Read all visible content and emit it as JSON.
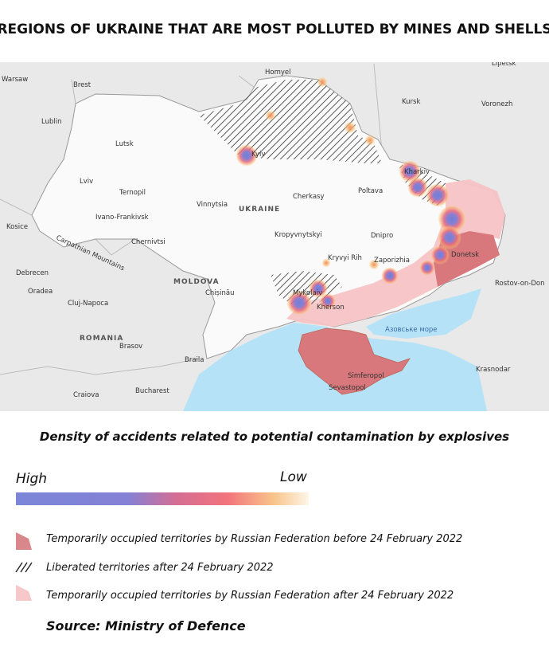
{
  "title": "REGIONS OF UKRAINE THAT ARE MOST POLLUTED BY MINES AND SHELLS",
  "map": {
    "labels": [
      "Warsaw",
      "Brest",
      "Homyel",
      "Lipetsk",
      "Kursk",
      "Voronezh",
      "Lublin",
      "Lutsk",
      "Kyiv",
      "Kharkiv",
      "Lviv",
      "Ternopil",
      "Vinnytsia",
      "Cherkasy",
      "Poltava",
      "UKRAINE",
      "Ivano-Frankivsk",
      "Kosice",
      "Chernivtsi",
      "Kropyvnytskyi",
      "Dnipro",
      "Donetsk",
      "Debrecen",
      "MOLDOVA",
      "Chișinău",
      "Kryvyi Rih",
      "Zaporizhia",
      "Rostov-on-Don",
      "Oradea",
      "Cluj-Napoca",
      "Mykolaiv",
      "Kherson",
      "Азовське море",
      "ROMANIA",
      "Brasov",
      "Braila",
      "Simferopol",
      "Krasnodar",
      "Sevastopol",
      "Craiova",
      "Bucharest",
      "Carpathian Mountains"
    ]
  },
  "legend": {
    "heading": "Density of accidents related to potential contamination by explosives",
    "high": "High",
    "low": "Low",
    "items": [
      "Temporarily occupied territories by Russian Federation before 24 February 2022",
      "Liberated territories after 24 February 2022",
      "Temporarily occupied territories by Russian Federation after 24 February 2022"
    ]
  },
  "source": "Source: Ministry of Defence"
}
